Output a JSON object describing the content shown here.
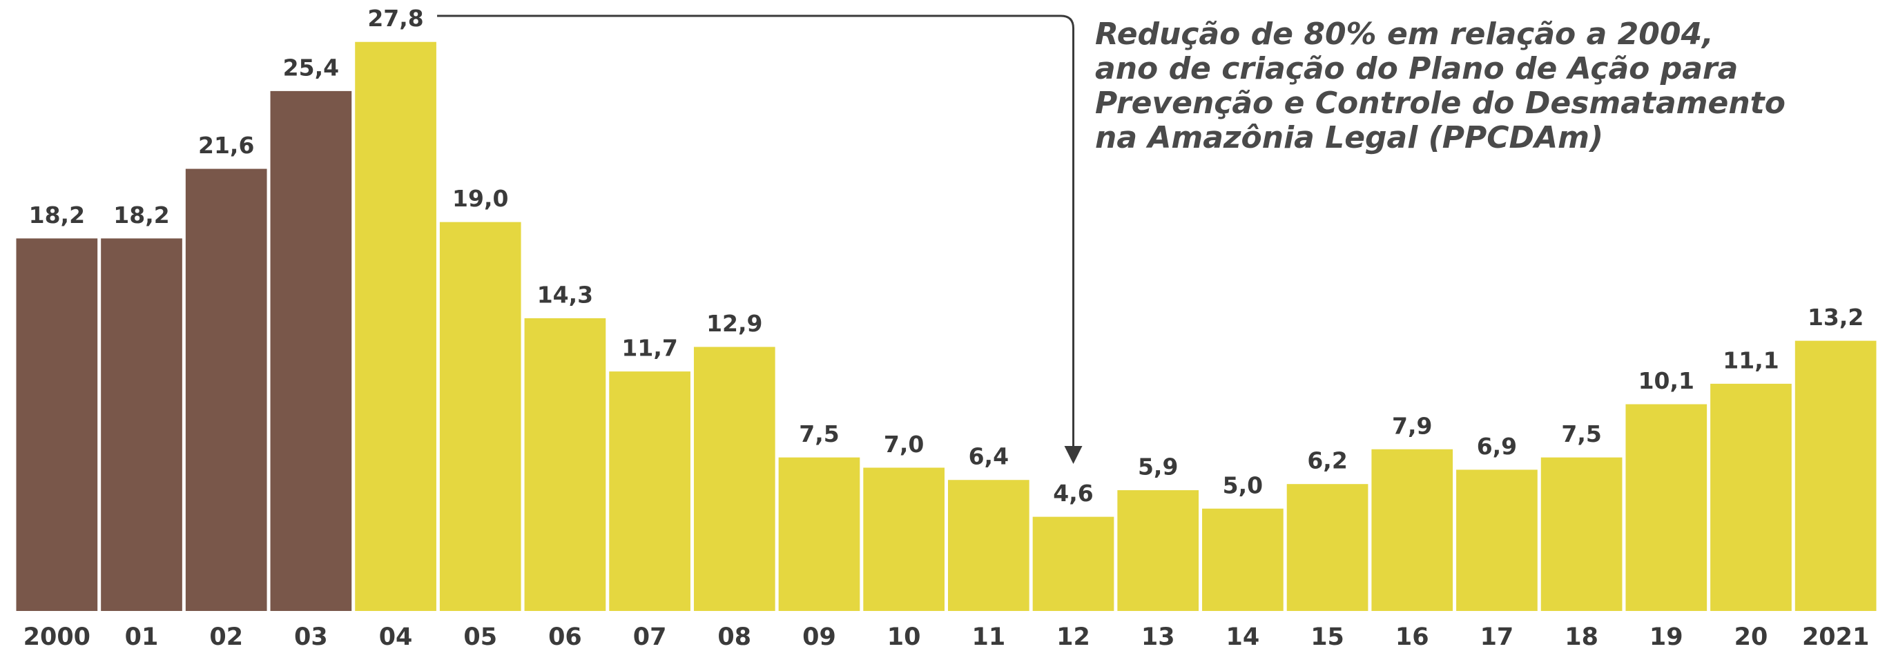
{
  "chart_data": {
    "type": "bar",
    "categories": [
      "2000",
      "01",
      "02",
      "03",
      "04",
      "05",
      "06",
      "07",
      "08",
      "09",
      "10",
      "11",
      "12",
      "13",
      "14",
      "15",
      "16",
      "17",
      "18",
      "19",
      "20",
      "2021"
    ],
    "values": [
      18.2,
      18.2,
      21.6,
      25.4,
      27.8,
      19.0,
      14.3,
      11.7,
      12.9,
      7.5,
      7.0,
      6.4,
      4.6,
      5.9,
      5.0,
      6.2,
      7.9,
      6.9,
      7.5,
      10.1,
      11.1,
      13.2
    ],
    "value_labels": [
      "18,2",
      "18,2",
      "21,6",
      "25,4",
      "27,8",
      "19,0",
      "14,3",
      "11,7",
      "12,9",
      "7,5",
      "7,0",
      "6,4",
      "4,6",
      "5,9",
      "5,0",
      "6,2",
      "7,9",
      "6,9",
      "7,5",
      "10,1",
      "11,1",
      "13,2"
    ],
    "colors": [
      "#79574a",
      "#79574a",
      "#79574a",
      "#79574a",
      "#e5d740",
      "#e5d740",
      "#e5d740",
      "#e5d740",
      "#e5d740",
      "#e5d740",
      "#e5d740",
      "#e5d740",
      "#e5d740",
      "#e5d740",
      "#e5d740",
      "#e5d740",
      "#e5d740",
      "#e5d740",
      "#e5d740",
      "#e5d740",
      "#e5d740",
      "#e5d740"
    ],
    "annotation": [
      "Redução de 80% em relação a 2004,",
      "ano de criação do Plano de Ação para",
      "Prevenção e Controle do Desmatamento",
      "na Amazônia Legal (PPCDAm)"
    ]
  }
}
